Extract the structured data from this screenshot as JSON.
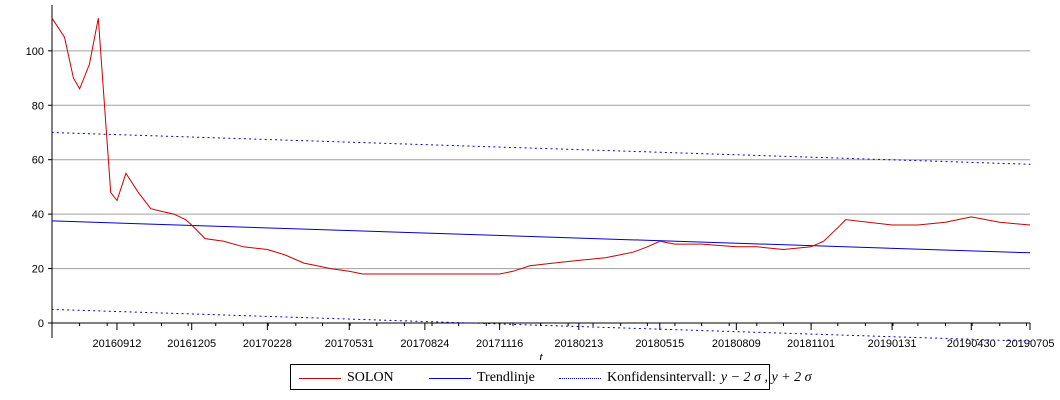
{
  "chart_data": {
    "type": "line",
    "xlabel": "t",
    "ylabel": "",
    "ylim": [
      0,
      115
    ],
    "yticks": [
      "0",
      "20",
      "40",
      "60",
      "80",
      "100"
    ],
    "x_ticklabels": [
      "20160912",
      "20161205",
      "20170228",
      "20170531",
      "20170824",
      "20171116",
      "20180213",
      "20180515",
      "20180809",
      "20181101",
      "20190131",
      "20190430",
      "20190705"
    ],
    "grid": "horizontal",
    "legend_position": "bottom",
    "series": [
      {
        "name": "SOLON",
        "color": "#cc0000",
        "style": "solid",
        "points": [
          [
            "20160701",
            112
          ],
          [
            "20160715",
            105
          ],
          [
            "20160725",
            90
          ],
          [
            "20160801",
            86
          ],
          [
            "20160812",
            95
          ],
          [
            "20160822",
            112
          ],
          [
            "20160829",
            80
          ],
          [
            "20160905",
            48
          ],
          [
            "20160912",
            45
          ],
          [
            "20160922",
            55
          ],
          [
            "20161006",
            48
          ],
          [
            "20161020",
            42
          ],
          [
            "20161101",
            41
          ],
          [
            "20161115",
            40
          ],
          [
            "20161128",
            38
          ],
          [
            "20161205",
            36
          ],
          [
            "20161220",
            31
          ],
          [
            "20170110",
            30
          ],
          [
            "20170201",
            28
          ],
          [
            "20170228",
            27
          ],
          [
            "20170320",
            25
          ],
          [
            "20170410",
            22
          ],
          [
            "20170425",
            21
          ],
          [
            "20170510",
            20
          ],
          [
            "20170531",
            19
          ],
          [
            "20170615",
            18
          ],
          [
            "20170701",
            18
          ],
          [
            "20170720",
            18
          ],
          [
            "20170824",
            18
          ],
          [
            "20170920",
            18
          ],
          [
            "20171020",
            18
          ],
          [
            "20171116",
            18
          ],
          [
            "20171201",
            19
          ],
          [
            "20171220",
            21
          ],
          [
            "20180115",
            22
          ],
          [
            "20180213",
            23
          ],
          [
            "20180315",
            24
          ],
          [
            "20180415",
            26
          ],
          [
            "20180501",
            28
          ],
          [
            "20180515",
            30
          ],
          [
            "20180601",
            29
          ],
          [
            "20180701",
            29
          ],
          [
            "20180809",
            28
          ],
          [
            "20180901",
            28
          ],
          [
            "20181001",
            27
          ],
          [
            "20181101",
            28
          ],
          [
            "20181115",
            30
          ],
          [
            "20181201",
            35
          ],
          [
            "20181210",
            38
          ],
          [
            "20190131",
            36
          ],
          [
            "20190301",
            36
          ],
          [
            "20190401",
            37
          ],
          [
            "20190430",
            39
          ],
          [
            "20190601",
            37
          ],
          [
            "20190705",
            36
          ]
        ]
      },
      {
        "name": "Trendlinje",
        "color": "#0000cc",
        "style": "solid",
        "points": [
          [
            "20160701",
            37.5
          ],
          [
            "20190705",
            25.8
          ]
        ]
      },
      {
        "name": "Konfidensintervall:",
        "name_math": "y − 2 σ , y + 2 σ",
        "color": "#0000cc",
        "style": "dotted",
        "upper": [
          [
            "20160701",
            70
          ],
          [
            "20190705",
            58.3
          ]
        ],
        "lower": [
          [
            "20160701",
            5
          ],
          [
            "20190705",
            -6.7
          ]
        ]
      }
    ]
  }
}
